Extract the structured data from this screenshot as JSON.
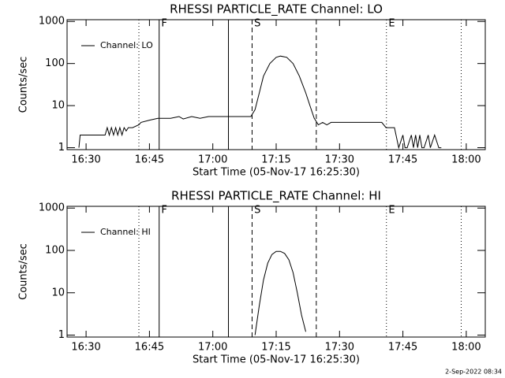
{
  "chart_data": [
    {
      "type": "line",
      "title": "RHESSI PARTICLE_RATE Channel: LO",
      "xlabel": "Start Time (05-Nov-17 16:25:30)",
      "ylabel": "Counts/sec",
      "log_y": true,
      "xlim": [
        985.5,
        1084.5
      ],
      "ylim": [
        0.9,
        1100
      ],
      "yticks": [
        1,
        10,
        100,
        1000
      ],
      "xticks": [
        {
          "value": 990,
          "label": "16:30"
        },
        {
          "value": 1005,
          "label": "16:45"
        },
        {
          "value": 1020,
          "label": "17:00"
        },
        {
          "value": 1035,
          "label": "17:15"
        },
        {
          "value": 1050,
          "label": "17:30"
        },
        {
          "value": 1065,
          "label": "17:45"
        },
        {
          "value": 1080,
          "label": "18:00"
        }
      ],
      "vlines": [
        {
          "x": 1002.5,
          "style": "dotted"
        },
        {
          "x": 1007.3,
          "style": "solid"
        },
        {
          "x": 1023.7,
          "style": "solid"
        },
        {
          "x": 1029.3,
          "style": "dashed"
        },
        {
          "x": 1044.5,
          "style": "dashed"
        },
        {
          "x": 1061.1,
          "style": "dotted"
        },
        {
          "x": 1078.8,
          "style": "dotted"
        }
      ],
      "annotations": [
        {
          "text": "F",
          "x": 1007.8
        },
        {
          "text": "S",
          "x": 1029.8
        },
        {
          "text": "E",
          "x": 1061.6
        }
      ],
      "legend": "upper left",
      "series": [
        {
          "name": "Channel: LO",
          "color": "#000000",
          "x": [
            988.3,
            988.6,
            994.5,
            995,
            995.5,
            996,
            996.5,
            997,
            997.5,
            998,
            998.5,
            999,
            999.5,
            1000,
            1001,
            1002.5,
            1003,
            1005,
            1007,
            1010,
            1012,
            1013,
            1015,
            1017,
            1019,
            1021,
            1023,
            1025,
            1027,
            1029,
            1030,
            1031,
            1032,
            1033.5,
            1035,
            1036,
            1037.5,
            1039,
            1040.5,
            1042,
            1043,
            1044,
            1045,
            1046,
            1047,
            1048,
            1050,
            1055,
            1060,
            1061,
            1062,
            1063,
            1064,
            1065,
            1065.5,
            1066,
            1067,
            1067.5,
            1068,
            1068.5,
            1069,
            1069.5,
            1070,
            1071,
            1071.5,
            1072.5,
            1073.5,
            1074.1
          ],
          "values": [
            1,
            2,
            2,
            3,
            2,
            3,
            2,
            3,
            2,
            3,
            2,
            3,
            2.5,
            3,
            3,
            3.5,
            4,
            4.5,
            5,
            5,
            5.5,
            4.8,
            5.5,
            5,
            5.5,
            5.5,
            5.5,
            5.5,
            5.5,
            5.5,
            8,
            20,
            50,
            100,
            140,
            150,
            140,
            100,
            50,
            20,
            10,
            5,
            3.5,
            4,
            3.5,
            4,
            4,
            4,
            4,
            3,
            3,
            3,
            1,
            2,
            1,
            1,
            2,
            1,
            2,
            1,
            2,
            1,
            1,
            2,
            1,
            2,
            1,
            1
          ]
        }
      ]
    },
    {
      "type": "line",
      "title": "RHESSI PARTICLE_RATE Channel: HI",
      "xlabel": "Start Time (05-Nov-17 16:25:30)",
      "ylabel": "Counts/sec",
      "log_y": true,
      "xlim": [
        985.5,
        1084.5
      ],
      "ylim": [
        0.9,
        1100
      ],
      "yticks": [
        1,
        10,
        100,
        1000
      ],
      "xticks": [
        {
          "value": 990,
          "label": "16:30"
        },
        {
          "value": 1005,
          "label": "16:45"
        },
        {
          "value": 1020,
          "label": "17:00"
        },
        {
          "value": 1035,
          "label": "17:15"
        },
        {
          "value": 1050,
          "label": "17:30"
        },
        {
          "value": 1065,
          "label": "17:45"
        },
        {
          "value": 1080,
          "label": "18:00"
        }
      ],
      "vlines": [
        {
          "x": 1002.5,
          "style": "dotted"
        },
        {
          "x": 1007.3,
          "style": "solid"
        },
        {
          "x": 1023.7,
          "style": "solid"
        },
        {
          "x": 1029.3,
          "style": "dashed"
        },
        {
          "x": 1044.5,
          "style": "dashed"
        },
        {
          "x": 1061.1,
          "style": "dotted"
        },
        {
          "x": 1078.8,
          "style": "dotted"
        }
      ],
      "annotations": [
        {
          "text": "F",
          "x": 1007.8
        },
        {
          "text": "S",
          "x": 1029.8
        },
        {
          "text": "E",
          "x": 1061.6
        }
      ],
      "legend": "upper left",
      "series": [
        {
          "name": "Channel: HI",
          "color": "#000000",
          "x": [
            1030,
            1031,
            1032,
            1033,
            1034,
            1035,
            1036,
            1037,
            1038,
            1039,
            1040,
            1041,
            1042
          ],
          "values": [
            1,
            5,
            20,
            50,
            80,
            95,
            95,
            85,
            60,
            30,
            10,
            3,
            1.2
          ]
        }
      ]
    }
  ],
  "footer": "2-Sep-2022 08:34"
}
